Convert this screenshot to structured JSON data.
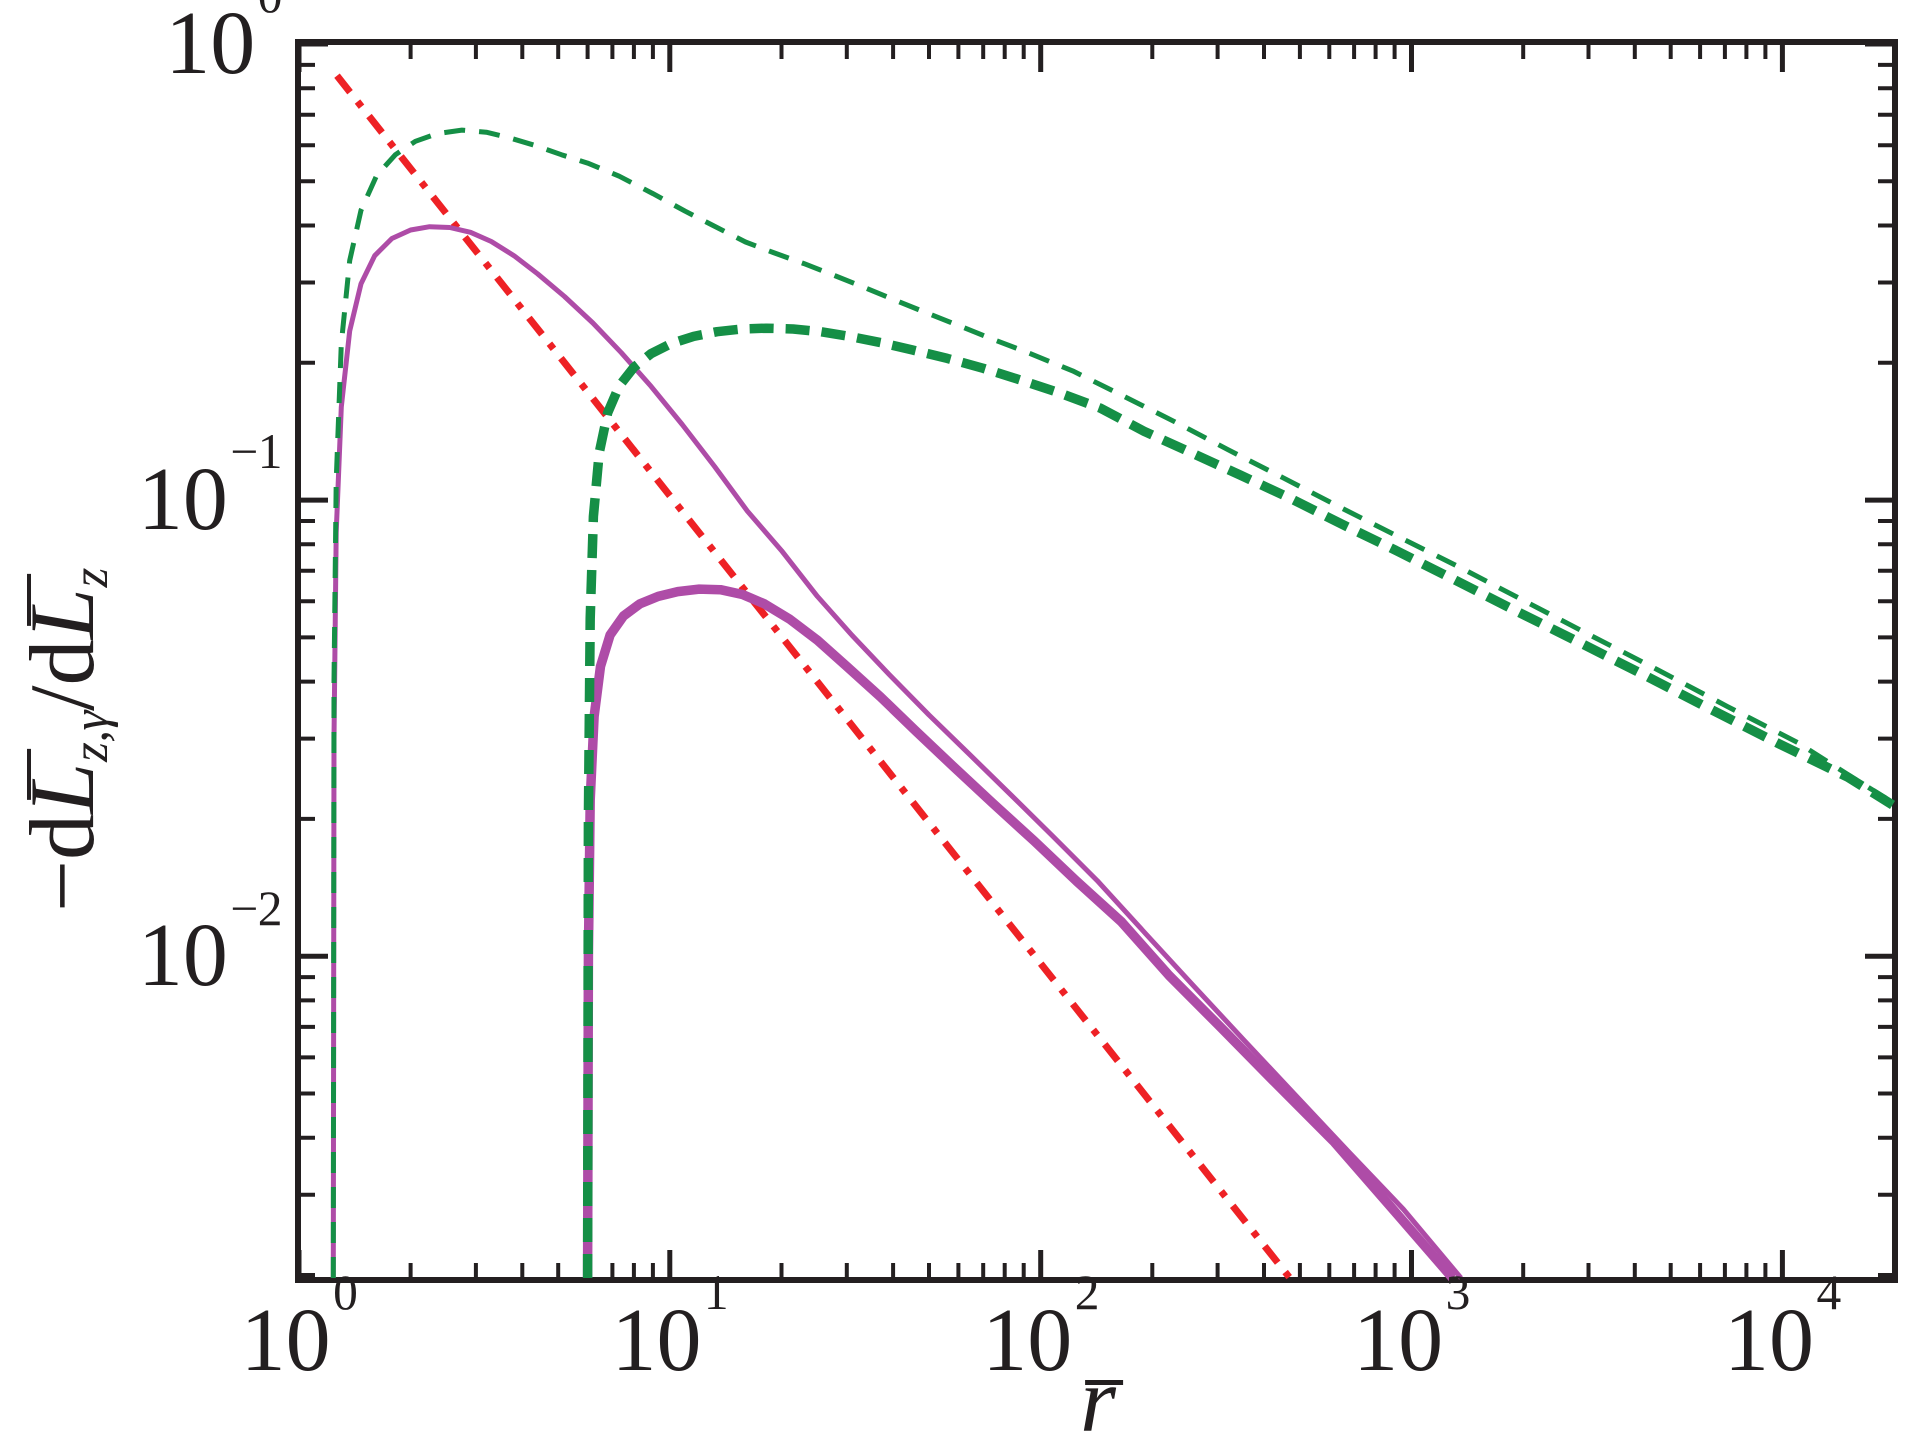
{
  "figure": {
    "kind": "log-log scientific line plot",
    "background": "#ffffff",
    "axis_color": "#231f20",
    "grid": false,
    "legend": null,
    "title": ""
  },
  "x_axis": {
    "title_letter": "r",
    "title_has_overbar": true,
    "scale": "log",
    "tick_base": "10"
  },
  "y_axis": {
    "title_prefix": "−d",
    "title_L1": "L",
    "title_sub1": "z,γ",
    "title_mid": "/d",
    "title_L2": "L",
    "title_sub2": "z",
    "scale": "log",
    "tick_base": "10"
  },
  "chart_data": {
    "type": "line",
    "xscale": "log",
    "yscale": "log",
    "xlabel": "r̄",
    "ylabel": "−dL̄z,γ/dL̄z",
    "xlim": [
      1,
      20000
    ],
    "ylim": [
      0.00197,
      1.0
    ],
    "x_tick_exponents": [
      0,
      1,
      2,
      3,
      4
    ],
    "y_tick_exponents": [
      0,
      -1,
      -2
    ],
    "grid": false,
    "legend_position": "none",
    "series": [
      {
        "name": "red-dashdot-power-law",
        "style": "dashdot",
        "color": "#ee2125",
        "stroke_width": 7,
        "dash": "21 12 6.5 12",
        "points": [
          [
            1.266,
            0.852
          ],
          [
            470,
            0.00197
          ]
        ]
      },
      {
        "name": "magenta-solid-thin",
        "style": "solid",
        "color": "#ae4ca7",
        "stroke_width": 5,
        "points": [
          [
            1.237,
            0.00197
          ],
          [
            1.243,
            0.03
          ],
          [
            1.26,
            0.085
          ],
          [
            1.3,
            0.16
          ],
          [
            1.37,
            0.235
          ],
          [
            1.47,
            0.298
          ],
          [
            1.6,
            0.3435
          ],
          [
            1.78,
            0.3745
          ],
          [
            2.0,
            0.391
          ],
          [
            2.25,
            0.3975
          ],
          [
            2.55,
            0.396
          ],
          [
            2.9,
            0.3865
          ],
          [
            3.3,
            0.369
          ],
          [
            3.8,
            0.3435
          ],
          [
            4.4,
            0.3135
          ],
          [
            5.2,
            0.2795
          ],
          [
            6.2,
            0.2445
          ],
          [
            7.4,
            0.2105
          ],
          [
            8.9,
            0.1775
          ],
          [
            10.8,
            0.1465
          ],
          [
            13.2,
            0.1185
          ],
          [
            16.2,
            0.0945
          ],
          [
            20,
            0.0775
          ],
          [
            25,
            0.0615
          ],
          [
            31,
            0.0505
          ],
          [
            39,
            0.0415
          ],
          [
            50,
            0.0338
          ],
          [
            64,
            0.0278
          ],
          [
            83,
            0.0226
          ],
          [
            108,
            0.0183
          ],
          [
            142,
            0.01465
          ],
          [
            190,
            0.0113
          ],
          [
            258,
            0.00862
          ],
          [
            355,
            0.00652
          ],
          [
            490,
            0.00493
          ],
          [
            680,
            0.00371
          ],
          [
            950,
            0.00279
          ],
          [
            1360,
            0.00197
          ]
        ]
      },
      {
        "name": "magenta-solid-thick",
        "style": "solid",
        "color": "#ae4ca7",
        "stroke_width": 9.5,
        "points": [
          [
            6.0,
            0.00197
          ],
          [
            6.03,
            0.01
          ],
          [
            6.1,
            0.022
          ],
          [
            6.25,
            0.0335
          ],
          [
            6.5,
            0.0432
          ],
          [
            6.9,
            0.0506
          ],
          [
            7.5,
            0.0557
          ],
          [
            8.3,
            0.0592
          ],
          [
            9.3,
            0.0615
          ],
          [
            10.5,
            0.063
          ],
          [
            12,
            0.0638
          ],
          [
            13.7,
            0.0636
          ],
          [
            15.7,
            0.0621
          ],
          [
            18,
            0.0592
          ],
          [
            21,
            0.0549
          ],
          [
            25,
            0.0493
          ],
          [
            30,
            0.0432
          ],
          [
            37,
            0.037
          ],
          [
            46,
            0.0312
          ],
          [
            58,
            0.0261
          ],
          [
            74,
            0.0217
          ],
          [
            96,
            0.0179
          ],
          [
            125,
            0.0146
          ],
          [
            165,
            0.0119
          ],
          [
            222,
            0.00907
          ],
          [
            305,
            0.007
          ],
          [
            430,
            0.00527
          ],
          [
            620,
            0.00391
          ],
          [
            900,
            0.00276
          ],
          [
            1290,
            0.00197
          ]
        ]
      },
      {
        "name": "green-dashed-thin",
        "style": "dashed",
        "color": "#158f46",
        "stroke_width": 5,
        "dash": "21 14",
        "points": [
          [
            1.237,
            0.00197
          ],
          [
            1.243,
            0.04
          ],
          [
            1.26,
            0.11
          ],
          [
            1.3,
            0.22
          ],
          [
            1.37,
            0.335
          ],
          [
            1.47,
            0.432
          ],
          [
            1.62,
            0.515
          ],
          [
            1.82,
            0.572
          ],
          [
            2.06,
            0.612
          ],
          [
            2.36,
            0.636
          ],
          [
            2.75,
            0.6475
          ],
          [
            3.2,
            0.6405
          ],
          [
            3.7,
            0.6225
          ],
          [
            4.35,
            0.5985
          ],
          [
            5.1,
            0.572
          ],
          [
            6,
            0.548
          ],
          [
            7.3,
            0.513
          ],
          [
            9,
            0.47
          ],
          [
            11,
            0.43
          ],
          [
            13,
            0.401
          ],
          [
            16,
            0.368
          ],
          [
            19,
            0.349
          ],
          [
            23,
            0.33
          ],
          [
            28,
            0.31
          ],
          [
            34,
            0.291
          ],
          [
            42,
            0.271
          ],
          [
            51,
            0.2545
          ],
          [
            62,
            0.239
          ],
          [
            75,
            0.2245
          ],
          [
            91,
            0.2115
          ],
          [
            122,
            0.192
          ],
          [
            165,
            0.17
          ],
          [
            230,
            0.1485
          ],
          [
            320,
            0.129
          ],
          [
            450,
            0.112
          ],
          [
            640,
            0.0966
          ],
          [
            920,
            0.0832
          ],
          [
            1350,
            0.0712
          ],
          [
            2000,
            0.0603
          ],
          [
            3000,
            0.0508
          ],
          [
            4600,
            0.0425
          ],
          [
            7100,
            0.0353
          ],
          [
            11000,
            0.0294
          ],
          [
            16000,
            0.0242
          ],
          [
            20500,
            0.0214
          ]
        ]
      },
      {
        "name": "green-dashed-thick",
        "style": "dashed",
        "color": "#158f46",
        "stroke_width": 9.5,
        "dash": "24 12",
        "points": [
          [
            6.0,
            0.00197
          ],
          [
            6.03,
            0.02
          ],
          [
            6.1,
            0.055
          ],
          [
            6.22,
            0.092
          ],
          [
            6.45,
            0.127
          ],
          [
            6.8,
            0.1555
          ],
          [
            7.3,
            0.178
          ],
          [
            8,
            0.1955
          ],
          [
            8.9,
            0.2095
          ],
          [
            10.1,
            0.2205
          ],
          [
            11.6,
            0.2285
          ],
          [
            13.4,
            0.234
          ],
          [
            15.6,
            0.2372
          ],
          [
            18.2,
            0.2382
          ],
          [
            21.5,
            0.2372
          ],
          [
            25.5,
            0.234
          ],
          [
            30.5,
            0.2285
          ],
          [
            37,
            0.2215
          ],
          [
            45,
            0.2135
          ],
          [
            56,
            0.2045
          ],
          [
            70,
            0.1945
          ],
          [
            88,
            0.1835
          ],
          [
            112,
            0.172
          ],
          [
            145,
            0.159
          ],
          [
            190,
            0.1415
          ],
          [
            255,
            0.127
          ],
          [
            345,
            0.1135
          ],
          [
            470,
            0.101
          ],
          [
            650,
            0.0885
          ],
          [
            910,
            0.0775
          ],
          [
            1300,
            0.067
          ],
          [
            1900,
            0.0573
          ],
          [
            2800,
            0.049
          ],
          [
            4200,
            0.0415
          ],
          [
            6400,
            0.0348
          ],
          [
            9800,
            0.0292
          ],
          [
            15000,
            0.0247
          ],
          [
            20500,
            0.0211
          ]
        ]
      }
    ]
  }
}
